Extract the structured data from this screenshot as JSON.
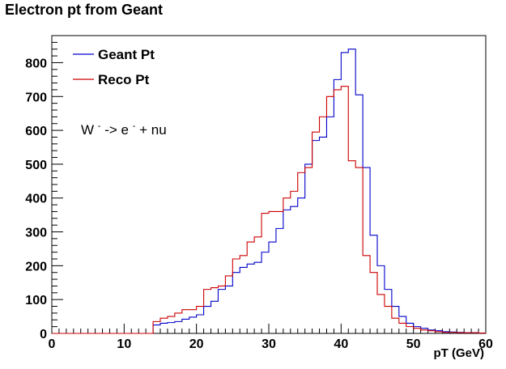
{
  "chart_data": {
    "type": "line",
    "title": "Electron pt from Geant",
    "xlabel": "pT (GeV)",
    "ylabel": "",
    "xlim": [
      0,
      60
    ],
    "ylim": [
      0,
      880
    ],
    "x_ticks": [
      0,
      10,
      20,
      30,
      40,
      50,
      60
    ],
    "y_ticks": [
      0,
      100,
      200,
      300,
      400,
      500,
      600,
      700,
      800
    ],
    "grid": false,
    "legend_position": "top-left",
    "bin_edges": [
      0,
      1,
      2,
      3,
      4,
      5,
      6,
      7,
      8,
      9,
      10,
      11,
      12,
      13,
      14,
      15,
      16,
      17,
      18,
      19,
      20,
      21,
      22,
      23,
      24,
      25,
      26,
      27,
      28,
      29,
      30,
      31,
      32,
      33,
      34,
      35,
      36,
      37,
      38,
      39,
      40,
      41,
      42,
      43,
      44,
      45,
      46,
      47,
      48,
      49,
      50,
      51,
      52,
      53,
      54,
      55,
      56,
      57,
      58,
      59,
      60
    ],
    "series": [
      {
        "name": "Geant Pt",
        "color": "#0000cc",
        "values": [
          0,
          0,
          0,
          0,
          0,
          0,
          0,
          0,
          0,
          0,
          0,
          0,
          0,
          0,
          25,
          30,
          32,
          35,
          42,
          48,
          55,
          80,
          95,
          130,
          140,
          180,
          195,
          205,
          210,
          240,
          270,
          310,
          365,
          375,
          400,
          500,
          570,
          580,
          640,
          750,
          830,
          840,
          705,
          490,
          290,
          200,
          130,
          80,
          50,
          30,
          20,
          15,
          10,
          8,
          5,
          4,
          3,
          2,
          2,
          1
        ]
      },
      {
        "name": "Reco Pt",
        "color": "#cc0000",
        "values": [
          0,
          0,
          0,
          0,
          0,
          0,
          0,
          0,
          0,
          0,
          0,
          0,
          0,
          0,
          35,
          45,
          50,
          60,
          70,
          70,
          80,
          130,
          135,
          140,
          170,
          220,
          230,
          270,
          285,
          355,
          360,
          360,
          400,
          420,
          475,
          490,
          595,
          640,
          700,
          720,
          730,
          510,
          490,
          230,
          180,
          115,
          80,
          45,
          30,
          20,
          15,
          10,
          8,
          5,
          3,
          3,
          2,
          2,
          2,
          1
        ]
      }
    ],
    "annotation": {
      "base": "W",
      "sup1": "-",
      "middle": " -> e",
      "sup2": "-",
      "end": " + nu"
    }
  }
}
